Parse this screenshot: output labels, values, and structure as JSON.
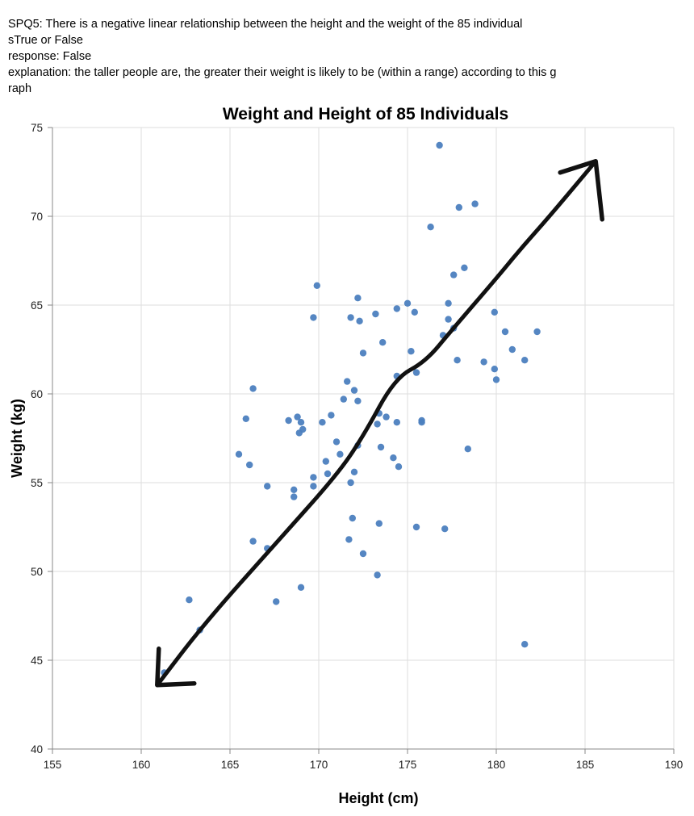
{
  "question": {
    "prompt_line1": "SPQ5: There is a negative linear relationship between the height and the weight of the 85 individual",
    "prompt_line2": "sTrue or False",
    "response_line": "response: False",
    "explanation_line1": "explanation: the taller people are, the greater their weight is likely to be (within a range) according to this g",
    "explanation_line2": "raph"
  },
  "chart_data": {
    "type": "scatter",
    "title": "Weight and Height of 85 Individuals",
    "xlabel": "Height (cm)",
    "ylabel": "Weight (kg)",
    "xlim": [
      155,
      190
    ],
    "ylim": [
      40,
      75
    ],
    "xticks": [
      155,
      160,
      165,
      170,
      175,
      180,
      185,
      190
    ],
    "yticks": [
      40,
      45,
      50,
      55,
      60,
      65,
      70,
      75
    ],
    "grid": true,
    "point_color": "#4c7fbf",
    "annotation": {
      "kind": "hand-drawn double-headed arrow",
      "color": "#111111",
      "path": [
        [
          160.9,
          43.6
        ],
        [
          163.5,
          47.0
        ],
        [
          167.5,
          51.5
        ],
        [
          171.0,
          55.4
        ],
        [
          172.5,
          57.6
        ],
        [
          174.3,
          60.9
        ],
        [
          176.0,
          61.8
        ],
        [
          177.5,
          63.6
        ],
        [
          180.0,
          66.5
        ],
        [
          181.4,
          68.2
        ],
        [
          183.0,
          70.0
        ],
        [
          185.6,
          73.1
        ]
      ]
    },
    "points": [
      [
        176.8,
        74.0
      ],
      [
        178.8,
        70.7
      ],
      [
        177.9,
        70.5
      ],
      [
        176.3,
        69.4
      ],
      [
        178.2,
        67.1
      ],
      [
        177.6,
        66.7
      ],
      [
        169.9,
        66.1
      ],
      [
        172.2,
        65.4
      ],
      [
        175.0,
        65.1
      ],
      [
        177.3,
        65.1
      ],
      [
        174.4,
        64.8
      ],
      [
        175.4,
        64.6
      ],
      [
        173.2,
        64.5
      ],
      [
        179.9,
        64.6
      ],
      [
        171.8,
        64.3
      ],
      [
        169.7,
        64.3
      ],
      [
        172.3,
        64.1
      ],
      [
        177.3,
        64.2
      ],
      [
        177.6,
        63.7
      ],
      [
        182.3,
        63.5
      ],
      [
        180.5,
        63.5
      ],
      [
        177.0,
        63.3
      ],
      [
        173.6,
        62.9
      ],
      [
        180.9,
        62.5
      ],
      [
        175.2,
        62.4
      ],
      [
        172.5,
        62.3
      ],
      [
        179.3,
        61.8
      ],
      [
        177.8,
        61.9
      ],
      [
        181.6,
        61.9
      ],
      [
        179.9,
        61.4
      ],
      [
        175.5,
        61.2
      ],
      [
        174.4,
        61.0
      ],
      [
        180.0,
        60.8
      ],
      [
        171.6,
        60.7
      ],
      [
        166.3,
        60.3
      ],
      [
        172.0,
        60.2
      ],
      [
        171.4,
        59.7
      ],
      [
        172.2,
        59.6
      ],
      [
        170.7,
        58.8
      ],
      [
        173.4,
        58.9
      ],
      [
        173.8,
        58.7
      ],
      [
        165.9,
        58.6
      ],
      [
        168.8,
        58.7
      ],
      [
        168.3,
        58.5
      ],
      [
        175.8,
        58.5
      ],
      [
        175.8,
        58.4
      ],
      [
        169.0,
        58.4
      ],
      [
        174.4,
        58.4
      ],
      [
        170.2,
        58.4
      ],
      [
        173.3,
        58.3
      ],
      [
        169.1,
        58.0
      ],
      [
        168.9,
        57.8
      ],
      [
        171.0,
        57.3
      ],
      [
        172.2,
        57.1
      ],
      [
        173.5,
        57.0
      ],
      [
        178.4,
        56.9
      ],
      [
        165.5,
        56.6
      ],
      [
        171.2,
        56.6
      ],
      [
        170.4,
        56.2
      ],
      [
        174.2,
        56.4
      ],
      [
        166.1,
        56.0
      ],
      [
        174.5,
        55.9
      ],
      [
        170.5,
        55.5
      ],
      [
        172.0,
        55.6
      ],
      [
        169.7,
        55.3
      ],
      [
        171.8,
        55.0
      ],
      [
        167.1,
        54.8
      ],
      [
        169.7,
        54.8
      ],
      [
        168.6,
        54.6
      ],
      [
        168.6,
        54.2
      ],
      [
        171.9,
        53.0
      ],
      [
        173.4,
        52.7
      ],
      [
        175.5,
        52.5
      ],
      [
        177.1,
        52.4
      ],
      [
        171.7,
        51.8
      ],
      [
        166.3,
        51.7
      ],
      [
        167.1,
        51.3
      ],
      [
        172.5,
        51.0
      ],
      [
        173.3,
        49.8
      ],
      [
        169.0,
        49.1
      ],
      [
        167.6,
        48.3
      ],
      [
        162.7,
        48.4
      ],
      [
        163.3,
        46.7
      ],
      [
        181.6,
        45.9
      ],
      [
        161.3,
        44.3
      ]
    ]
  }
}
